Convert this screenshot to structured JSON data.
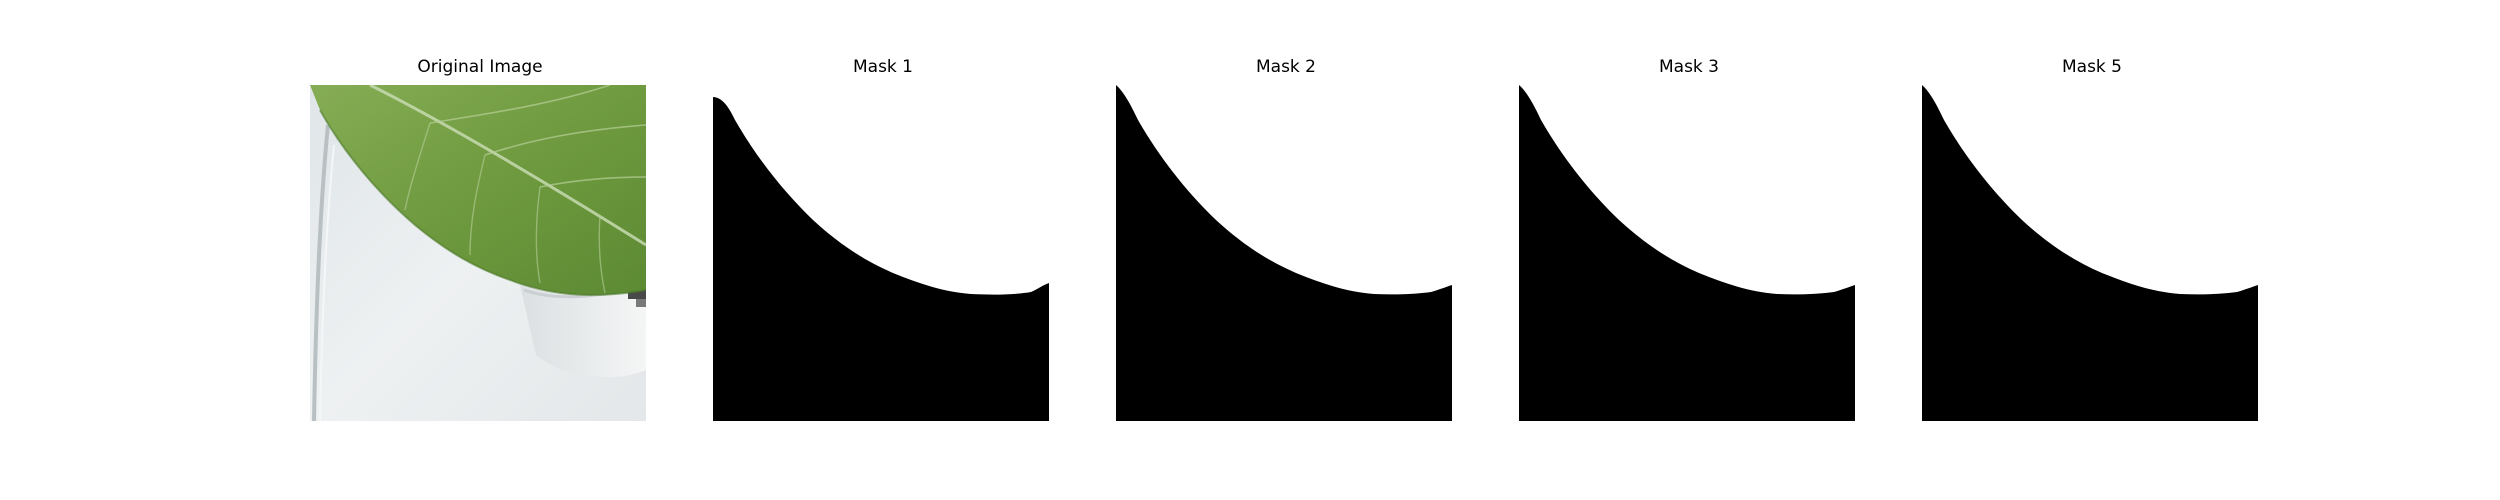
{
  "figure": {
    "panels": [
      {
        "title": "Original Image",
        "kind": "photo",
        "subject": "leaf-photo"
      },
      {
        "title": "Mask 1",
        "kind": "mask"
      },
      {
        "title": "Mask 2",
        "kind": "mask"
      },
      {
        "title": "Mask 3",
        "kind": "mask"
      },
      {
        "title": "Mask 5",
        "kind": "mask"
      }
    ],
    "colors": {
      "mask_foreground": "#ffffff",
      "mask_background": "#000000",
      "leaf_green": "#6f9a3f",
      "leaf_vein": "#c7dbb0",
      "backdrop": "#e7ecee"
    }
  }
}
